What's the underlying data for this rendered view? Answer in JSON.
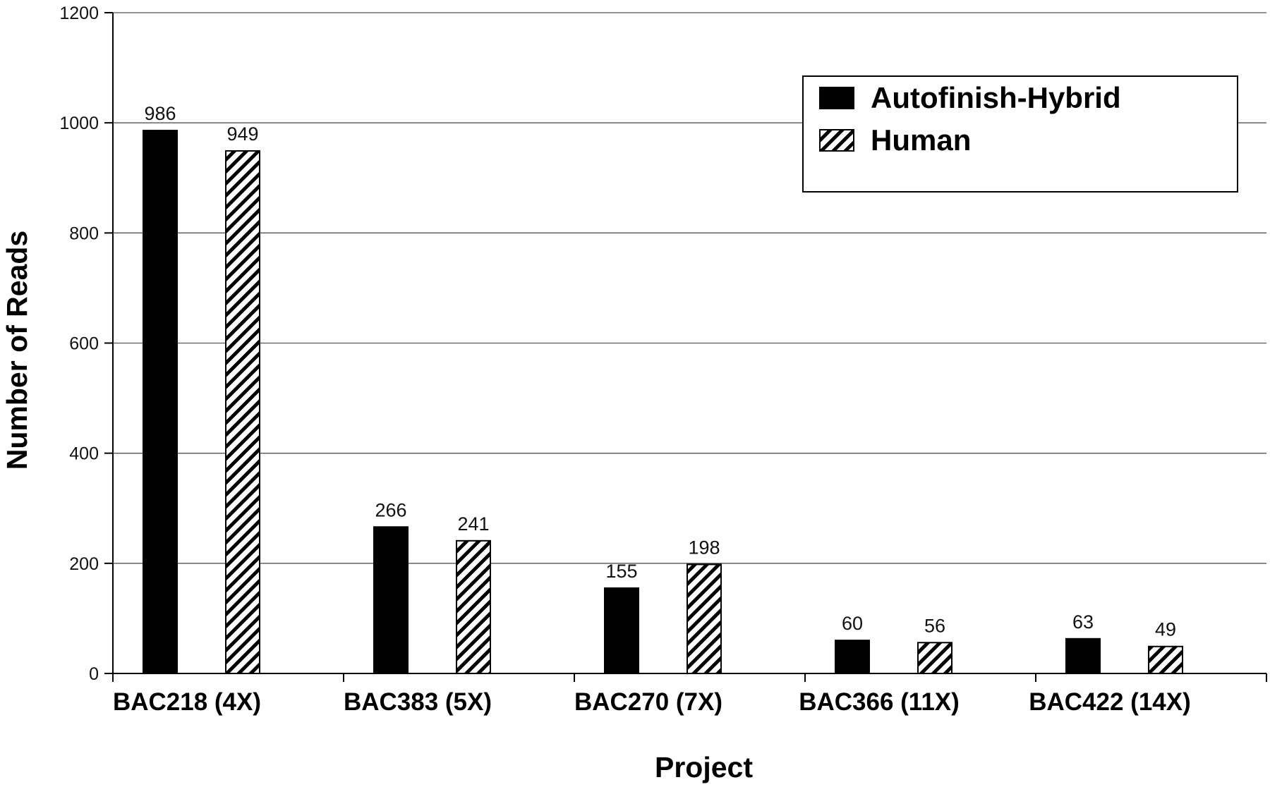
{
  "chart_data": {
    "type": "bar",
    "xlabel": "Project",
    "ylabel": "Number of Reads",
    "ylim": [
      0,
      1200
    ],
    "yticks": [
      0,
      200,
      400,
      600,
      800,
      1000,
      1200
    ],
    "grid": true,
    "legend_position": "top-right",
    "categories": [
      "BAC218 (4X)",
      "BAC383 (5X)",
      "BAC270 (7X)",
      "BAC366 (11X)",
      "BAC422 (14X)"
    ],
    "series": [
      {
        "name": "Autofinish-Hybrid",
        "values": [
          986,
          266,
          155,
          60,
          63
        ],
        "fill": "solid",
        "color": "#000000"
      },
      {
        "name": "Human",
        "values": [
          949,
          241,
          198,
          56,
          49
        ],
        "fill": "hatched",
        "color": "#000000"
      }
    ]
  }
}
